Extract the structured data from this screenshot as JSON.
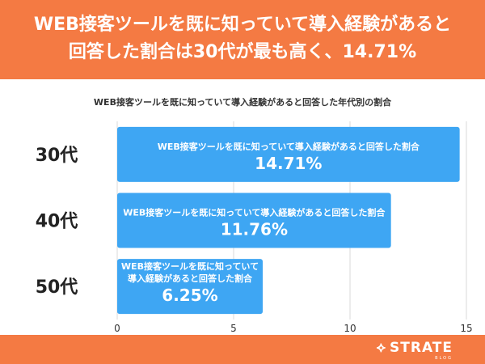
{
  "header": {
    "line1": "WEB接客ツールを既に知っていて導入経験があると",
    "line2": "回答した割合は30代が最も高く、14.71%"
  },
  "footer": {
    "logo_text": "STRATE",
    "logo_sub": "BLOG"
  },
  "colors": {
    "header_bg": "#F47A43",
    "bar": "#3EA6F3",
    "grid": "#D9D9D9"
  },
  "chart_data": {
    "type": "bar",
    "orientation": "horizontal",
    "title": "WEB接客ツールを既に知っていて導入経験があると回答した年代別の割合",
    "categories": [
      "30代",
      "40代",
      "50代"
    ],
    "values": [
      14.71,
      11.76,
      6.25
    ],
    "value_labels": [
      "14.71%",
      "11.76%",
      "6.25%"
    ],
    "bar_texts": [
      [
        "WEB接客ツールを既に知っていて導入経験があると回答した割合"
      ],
      [
        "WEB接客ツールを既に知っていて導入経験があると回答した割合"
      ],
      [
        "WEB接客ツールを既に知っていて",
        "導入経験があると回答した割合"
      ]
    ],
    "xticks": [
      0,
      5,
      10,
      15
    ],
    "xlim": [
      0,
      15
    ],
    "grid": true
  }
}
